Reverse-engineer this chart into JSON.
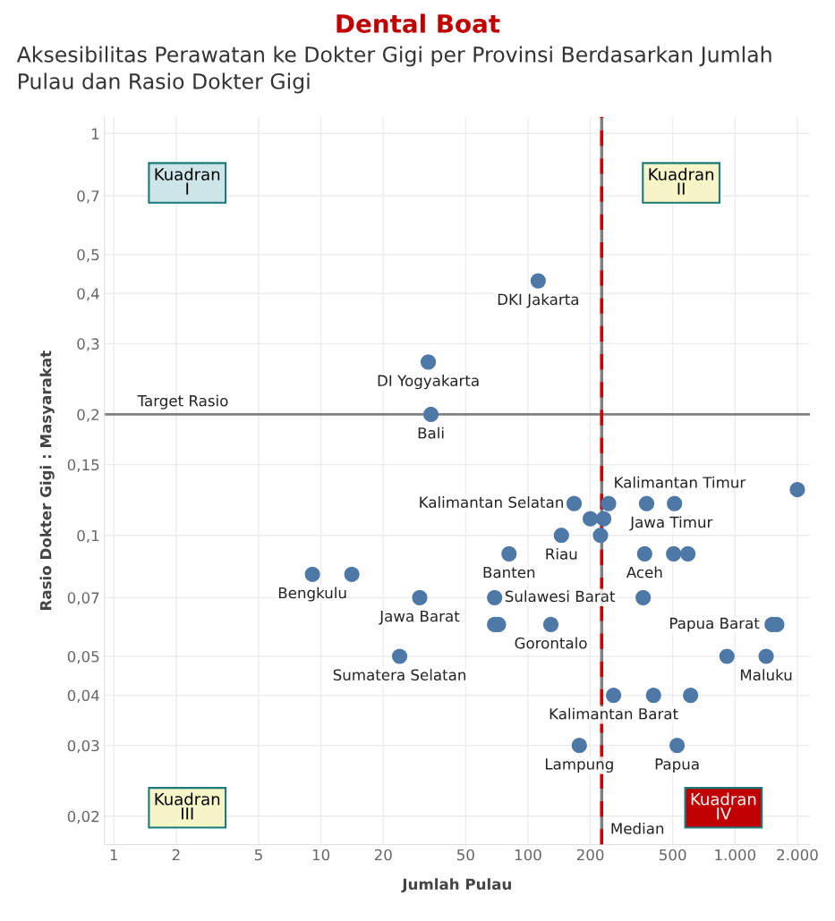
{
  "chart_data": {
    "type": "scatter",
    "title": "Dental Boat",
    "subtitle": "Aksesibilitas Perawatan ke Dokter Gigi per Provinsi Berdasarkan Jumlah Pulau dan Rasio Dokter Gigi",
    "xlabel": "Jumlah Pulau",
    "ylabel": "Rasio Dokter Gigi : Masyarakat",
    "log": "xy",
    "grid": true,
    "marker": "circle",
    "xlim": [
      0.9,
      2300
    ],
    "ylim": [
      0.017,
      1.1
    ],
    "xticks": [
      1,
      2,
      5,
      10,
      20,
      50,
      100,
      200,
      500,
      {
        "value": 1000,
        "label": "1.000"
      },
      {
        "value": 2000,
        "label": "2.000"
      }
    ],
    "yticks": [
      {
        "value": 0.02,
        "label": "0,02"
      },
      {
        "value": 0.03,
        "label": "0,03"
      },
      {
        "value": 0.04,
        "label": "0,04"
      },
      {
        "value": 0.05,
        "label": "0,05"
      },
      {
        "value": 0.07,
        "label": "0,07"
      },
      {
        "value": 0.1,
        "label": "0,1"
      },
      {
        "value": 0.15,
        "label": "0,15"
      },
      {
        "value": 0.2,
        "label": "0,2"
      },
      {
        "value": 0.3,
        "label": "0,3"
      },
      {
        "value": 0.4,
        "label": "0,4"
      },
      {
        "value": 0.5,
        "label": "0,5"
      },
      {
        "value": 0.7,
        "label": "0,7"
      },
      1
    ],
    "series": [
      {
        "color": "#4e79a7",
        "x": [
          112,
          33,
          34,
          2000,
          167,
          245,
          374,
          510,
          200,
          232,
          145,
          224,
          81,
          366,
          505,
          592,
          9.1,
          14.1,
          30,
          69,
          360,
          69,
          72,
          129,
          1510,
          1590,
          24,
          914,
          1413,
          259,
          404,
          610,
          177,
          525
        ],
        "values": [
          0.43,
          0.27,
          0.2,
          0.13,
          0.12,
          0.12,
          0.12,
          0.12,
          0.11,
          0.11,
          0.1,
          0.1,
          0.09,
          0.09,
          0.09,
          0.09,
          0.08,
          0.08,
          0.07,
          0.07,
          0.07,
          0.06,
          0.06,
          0.06,
          0.06,
          0.06,
          0.05,
          0.05,
          0.05,
          0.04,
          0.04,
          0.04,
          0.03,
          0.03
        ]
      }
    ],
    "ref_lines": [
      {
        "axis": "y",
        "value": 0.2,
        "label": "Target Rasio",
        "color": "#808080",
        "line_style": "solid"
      },
      {
        "axis": "x",
        "value": 227,
        "label": null,
        "color": "#808080",
        "line_style": "solid"
      },
      {
        "axis": "x",
        "value": 227,
        "label": "Median",
        "color": "#cc0000",
        "line_style": "dashed"
      }
    ],
    "annotations": [
      {
        "text": "DKI Jakarta",
        "x": 112,
        "y": 0.43
      },
      {
        "text": "DI Yogyakarta",
        "x": 33,
        "y": 0.27
      },
      {
        "text": "Bali",
        "x": 34,
        "y": 0.2
      },
      {
        "text": "Kalimantan Selatan",
        "x": 167,
        "y": 0.12
      },
      {
        "text": "Kalimantan Timur",
        "x": 245,
        "y": 0.12
      },
      {
        "text": "Jawa Timur",
        "x": 374,
        "y": 0.12
      },
      {
        "text": "Riau",
        "x": 145,
        "y": 0.1
      },
      {
        "text": "Banten",
        "x": 81,
        "y": 0.09
      },
      {
        "text": "Aceh",
        "x": 366,
        "y": 0.09
      },
      {
        "text": "Bengkulu",
        "x": 9.1,
        "y": 0.08
      },
      {
        "text": "Sulawesi Barat",
        "x": 69,
        "y": 0.07
      },
      {
        "text": "Jawa Barat",
        "x": 30,
        "y": 0.07
      },
      {
        "text": "Gorontalo",
        "x": 129,
        "y": 0.06
      },
      {
        "text": "Papua Barat",
        "x": 1510,
        "y": 0.06
      },
      {
        "text": "Sumatera Selatan",
        "x": 24,
        "y": 0.05
      },
      {
        "text": "Maluku",
        "x": 1413,
        "y": 0.05
      },
      {
        "text": "Kalimantan Barat",
        "x": 259,
        "y": 0.04
      },
      {
        "text": "Lampung",
        "x": 177,
        "y": 0.03
      },
      {
        "text": "Papua",
        "x": 525,
        "y": 0.03
      },
      "Kuadran\nI",
      "Kuadran\nII",
      "Kuadran\nIII",
      "Kuadran\nIV"
    ]
  }
}
